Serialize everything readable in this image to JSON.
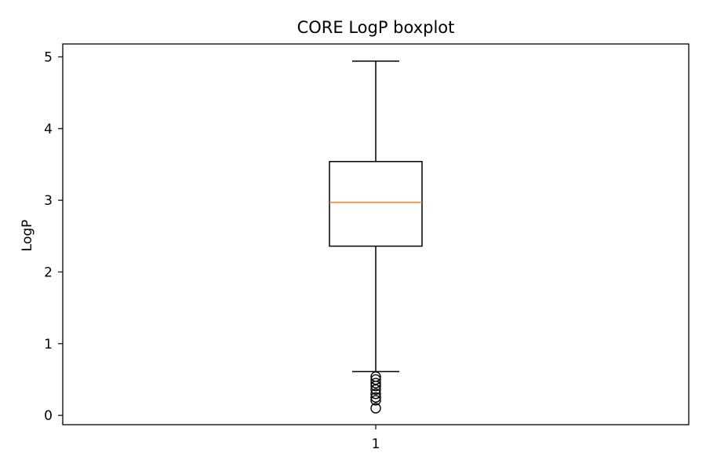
{
  "chart_data": {
    "type": "boxplot",
    "title": "CORE LogP boxplot",
    "xlabel": "",
    "ylabel": "LogP",
    "categories": [
      "1"
    ],
    "ylim": [
      -0.13,
      5.18
    ],
    "yticks": [
      "0",
      "1",
      "2",
      "3",
      "4",
      "5"
    ],
    "grid": false,
    "boxes": [
      {
        "category": "1",
        "whisker_low": 0.61,
        "q1": 2.36,
        "median": 2.97,
        "q3": 3.54,
        "whisker_high": 4.94,
        "outliers": [
          0.54,
          0.5,
          0.45,
          0.41,
          0.36,
          0.3,
          0.25,
          0.21,
          0.1
        ]
      }
    ],
    "colors": {
      "box": "#000000",
      "median": "#ff7f0e",
      "outlier": "#000000"
    }
  }
}
